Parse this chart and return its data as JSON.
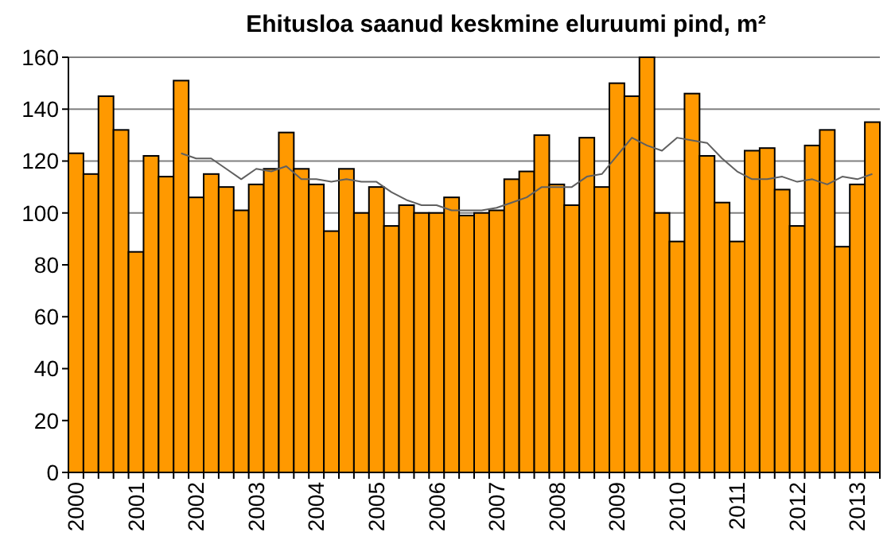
{
  "chart_data": {
    "type": "bar",
    "title": "Ehitusloa saanud keskmine eluruumi pind, m²",
    "categories": [
      "2000",
      null,
      null,
      null,
      "2001",
      null,
      null,
      null,
      "2002",
      null,
      null,
      null,
      "2003",
      null,
      null,
      null,
      "2004",
      null,
      null,
      null,
      "2005",
      null,
      null,
      null,
      "2006",
      null,
      null,
      null,
      "2007",
      null,
      null,
      null,
      "2008",
      null,
      null,
      null,
      "2009",
      null,
      null,
      null,
      "2010",
      null,
      null,
      null,
      "2011",
      null,
      null,
      null,
      "2012",
      null,
      null,
      null,
      "2013",
      null
    ],
    "series": [
      {
        "color": "#ff9900",
        "values": [
          123,
          115,
          145,
          132,
          85,
          122,
          114,
          151,
          106,
          115,
          110,
          101,
          111,
          117,
          131,
          117,
          111,
          93,
          117,
          100,
          110,
          95,
          103,
          100,
          100,
          106,
          99,
          100,
          101,
          113,
          116,
          130,
          111,
          103,
          129,
          110,
          150,
          145,
          160,
          100,
          89,
          146,
          122,
          104,
          89,
          124,
          125,
          109,
          95,
          126,
          132,
          87,
          111,
          135
        ]
      },
      {
        "type": "line",
        "color": "#606060",
        "values": [
          null,
          null,
          null,
          null,
          null,
          null,
          null,
          123,
          121,
          121,
          117,
          113,
          117,
          116,
          118,
          113,
          113,
          112,
          113,
          112,
          112,
          108,
          105,
          103,
          103,
          101,
          101,
          101,
          102,
          104,
          106,
          110,
          110,
          110,
          114,
          115,
          122,
          129,
          126,
          124,
          129,
          128,
          127,
          121,
          116,
          113,
          113,
          114,
          112,
          113,
          111,
          114,
          113,
          115
        ]
      }
    ],
    "ylim": [
      0,
      160
    ],
    "yticks": [
      0,
      20,
      40,
      60,
      80,
      100,
      120,
      140,
      160
    ],
    "grid": "y"
  }
}
